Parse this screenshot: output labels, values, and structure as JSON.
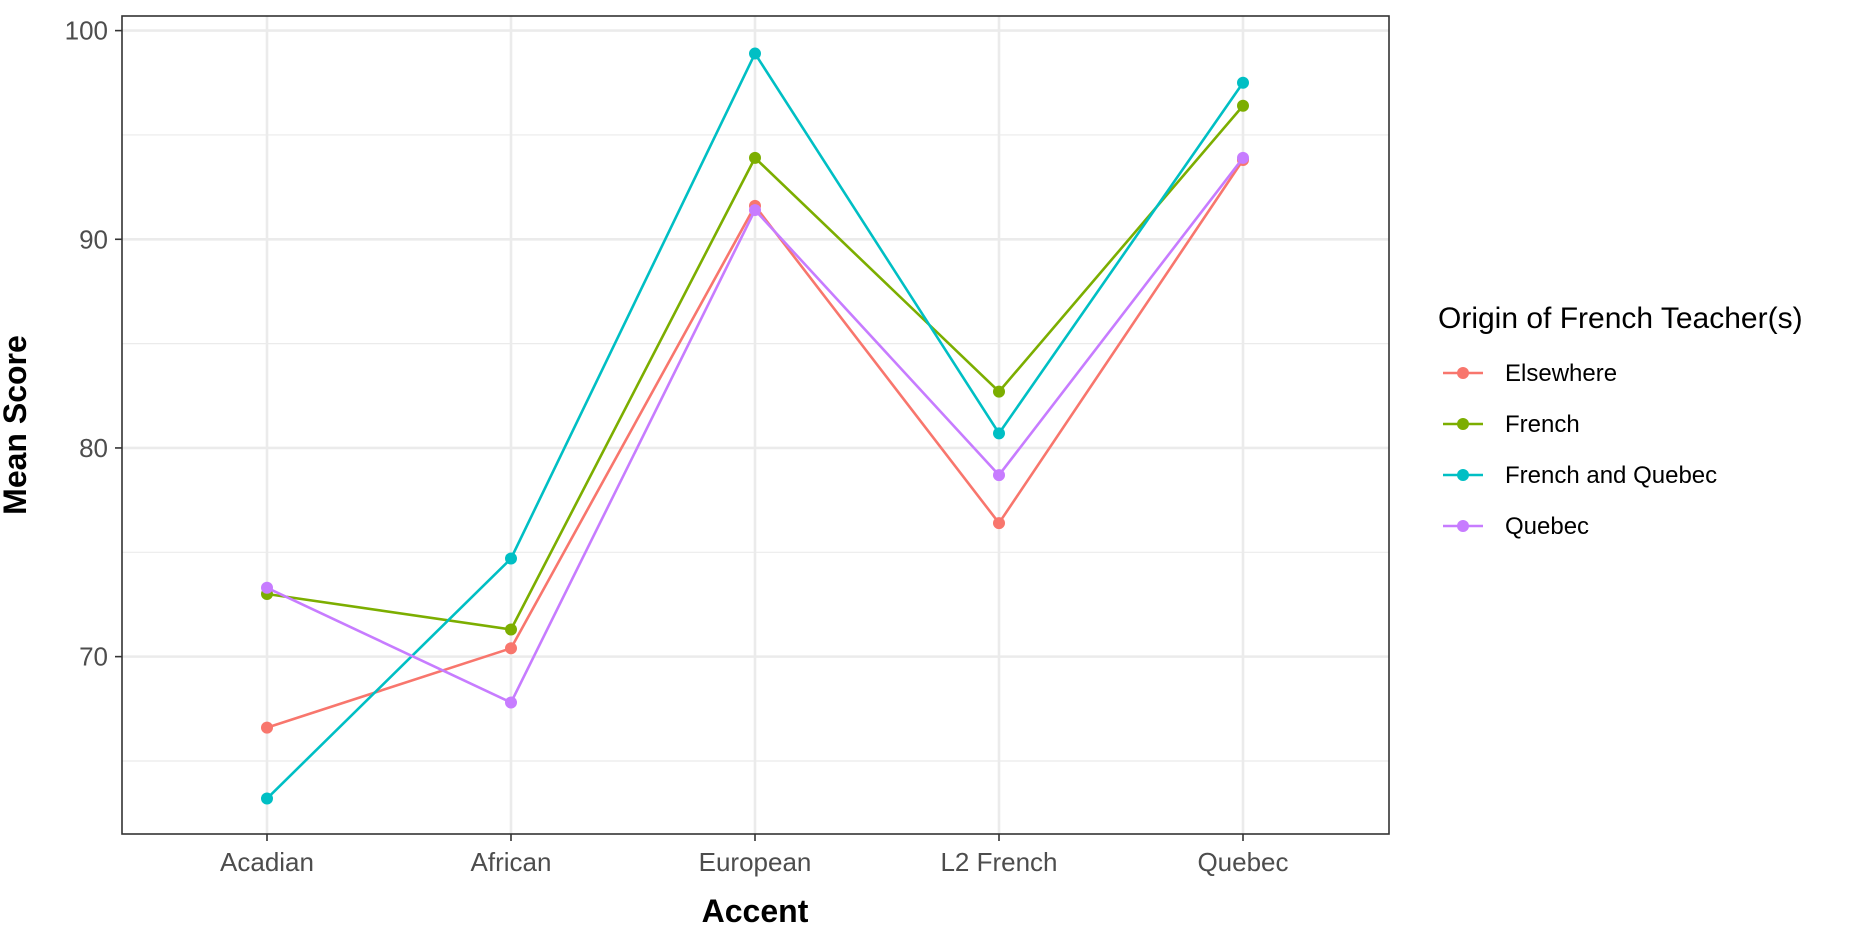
{
  "chart_data": {
    "type": "line",
    "xlabel": "Accent",
    "ylabel": "Mean Score",
    "categories": [
      "Acadian",
      "African",
      "European",
      "L2 French",
      "Quebec"
    ],
    "ylim": [
      61.5,
      100.7
    ],
    "yticks": [
      70,
      80,
      90,
      100
    ],
    "grid": true,
    "legend": {
      "title": "Origin of French Teacher(s)",
      "position": "right"
    },
    "series": [
      {
        "name": "Elsewhere",
        "color": "#F8766D",
        "values": [
          66.6,
          70.4,
          91.6,
          76.4,
          93.8
        ]
      },
      {
        "name": "French",
        "color": "#7CAE00",
        "values": [
          73.0,
          71.3,
          93.9,
          82.7,
          96.4
        ]
      },
      {
        "name": "French and Quebec",
        "color": "#00BFC4",
        "values": [
          63.2,
          74.7,
          98.9,
          80.7,
          97.5
        ]
      },
      {
        "name": "Quebec",
        "color": "#C77CFF",
        "values": [
          73.3,
          67.8,
          91.4,
          78.7,
          93.9
        ]
      }
    ]
  }
}
